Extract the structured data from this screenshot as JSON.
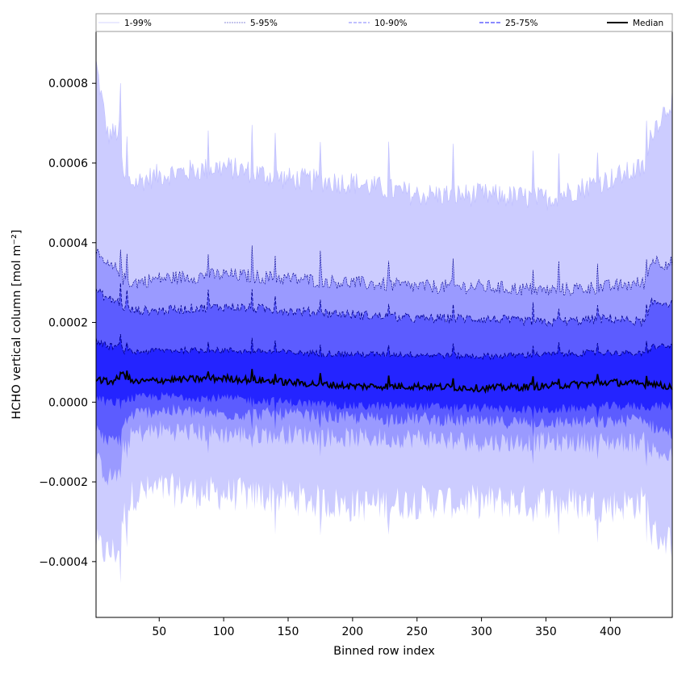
{
  "chart_data": {
    "type": "area",
    "xlabel": "Binned row index",
    "ylabel": "HCHO vertical column [mol m⁻²]",
    "xlim": [
      1,
      448
    ],
    "ylim": [
      -0.00054,
      0.00093
    ],
    "xticks": [
      50,
      100,
      150,
      200,
      250,
      300,
      350,
      400
    ],
    "yticks": [
      -0.0004,
      -0.0002,
      0.0,
      0.0002,
      0.0004,
      0.0006,
      0.0008
    ],
    "ytick_labels": [
      "−0.0004",
      "−0.0002",
      "0.0000",
      "0.0002",
      "0.0004",
      "0.0006",
      "0.0008"
    ],
    "legend": {
      "placement": "top",
      "entries": [
        "1-99%",
        "5-95%",
        "10-90%",
        "25-75%",
        "Median"
      ]
    },
    "grid": false,
    "band_colors": [
      "#ccccff",
      "#9a9aff",
      "#5c5cff",
      "#2424ff"
    ],
    "line_colors": [
      "#bfbfff",
      "#00008b",
      "#00008b",
      "#00008b",
      "#000000"
    ],
    "bands": [
      {
        "name": "1-99%",
        "x": [
          1,
          10,
          20,
          22,
          30,
          50,
          100,
          150,
          200,
          250,
          300,
          350,
          400,
          428,
          432,
          440,
          448
        ],
        "upper": [
          0.00085,
          0.00067,
          0.00068,
          0.00056,
          0.00055,
          0.00057,
          0.00059,
          0.00056,
          0.00055,
          0.00052,
          0.00052,
          0.00051,
          0.00056,
          0.00059,
          0.00068,
          0.00072,
          0.00076
        ],
        "lower": [
          -0.00036,
          -0.00038,
          -0.00037,
          -0.00029,
          -0.00023,
          -0.00022,
          -0.00023,
          -0.00024,
          -0.00026,
          -0.00025,
          -0.00025,
          -0.00025,
          -0.00026,
          -0.00025,
          -0.00033,
          -0.00034,
          -0.00035
        ]
      },
      {
        "name": "5-95%",
        "x": [
          1,
          10,
          20,
          22,
          30,
          50,
          100,
          150,
          200,
          250,
          300,
          350,
          400,
          428,
          432,
          440,
          448
        ],
        "upper": [
          0.00037,
          0.00034,
          0.00033,
          0.00031,
          0.0003,
          0.00031,
          0.00032,
          0.00031,
          0.0003,
          0.00029,
          0.00029,
          0.00028,
          0.00029,
          0.0003,
          0.00036,
          0.00035,
          0.00035
        ],
        "lower": [
          -0.00014,
          -0.00019,
          -0.00018,
          -0.00011,
          -8e-05,
          -7e-05,
          -8e-05,
          -8e-05,
          -9e-05,
          -9e-05,
          -0.0001,
          -0.0001,
          -0.0001,
          -0.0001,
          -0.00012,
          -0.00013,
          -0.00014
        ]
      },
      {
        "name": "10-90%",
        "x": [
          1,
          10,
          20,
          22,
          30,
          50,
          100,
          150,
          200,
          250,
          300,
          350,
          400,
          428,
          432,
          440,
          448
        ],
        "upper": [
          0.00028,
          0.00026,
          0.00025,
          0.00024,
          0.00023,
          0.00023,
          0.00024,
          0.00023,
          0.00022,
          0.00021,
          0.00021,
          0.0002,
          0.00021,
          0.0002,
          0.00025,
          0.00025,
          0.00025
        ],
        "lower": [
          -7e-05,
          -0.0001,
          -9e-05,
          -5e-05,
          -3e-05,
          -2e-05,
          -3e-05,
          -3e-05,
          -4e-05,
          -4e-05,
          -5e-05,
          -5e-05,
          -5e-05,
          -4e-05,
          -6e-05,
          -7e-05,
          -8e-05
        ]
      },
      {
        "name": "25-75%",
        "x": [
          1,
          10,
          20,
          22,
          30,
          50,
          100,
          150,
          200,
          250,
          300,
          350,
          400,
          428,
          432,
          440,
          448
        ],
        "upper": [
          0.000155,
          0.00014,
          0.00014,
          0.00013,
          0.000125,
          0.00013,
          0.00013,
          0.000125,
          0.00012,
          0.00012,
          0.000115,
          0.00012,
          0.000125,
          0.00012,
          0.00014,
          0.00014,
          0.00014
        ],
        "lower": [
          1e-05,
          0.0,
          0.0,
          1e-05,
          1e-05,
          1.5e-05,
          1e-05,
          0.0,
          -1e-05,
          -1e-05,
          -1.5e-05,
          -2e-05,
          -1e-05,
          -1e-05,
          -1e-05,
          -1e-05,
          -1e-05
        ]
      }
    ],
    "series": [
      {
        "name": "Median",
        "x": [
          1,
          10,
          20,
          22,
          30,
          50,
          100,
          150,
          200,
          250,
          300,
          350,
          400,
          428,
          432,
          440,
          448
        ],
        "values": [
          6e-05,
          5e-05,
          6e-05,
          7e-05,
          5e-05,
          5.5e-05,
          6e-05,
          5e-05,
          4e-05,
          4e-05,
          3.5e-05,
          4e-05,
          5e-05,
          4.5e-05,
          5e-05,
          4e-05,
          4e-05
        ]
      }
    ]
  }
}
